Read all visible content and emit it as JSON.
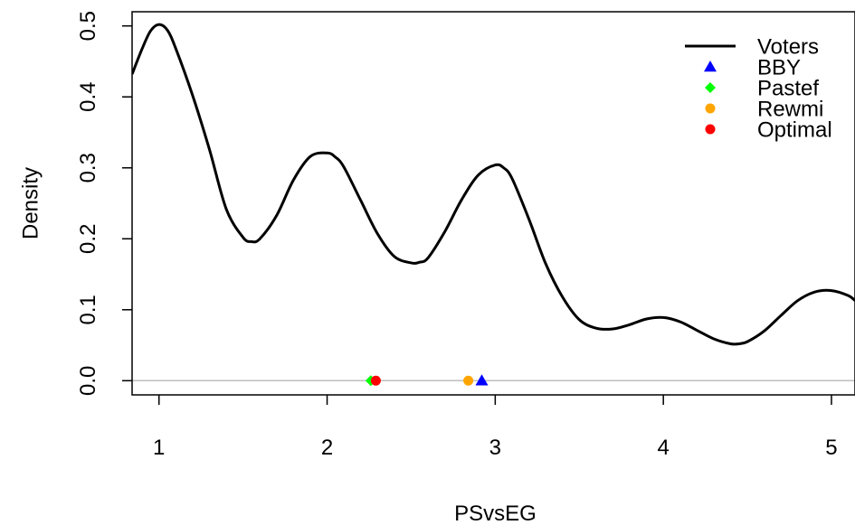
{
  "chart_data": {
    "type": "line",
    "title": "",
    "xlabel": "PSvsEG",
    "ylabel": "Density",
    "xlim": [
      0.84,
      5.14
    ],
    "ylim": [
      -0.02,
      0.52
    ],
    "x_ticks": [
      1,
      2,
      3,
      4,
      5
    ],
    "x_tick_labels": [
      "1",
      "2",
      "3",
      "4",
      "5"
    ],
    "y_ticks": [
      0.0,
      0.1,
      0.2,
      0.3,
      0.4,
      0.5
    ],
    "y_tick_labels": [
      "0.0",
      "0.1",
      "0.2",
      "0.3",
      "0.4",
      "0.5"
    ],
    "grid": false,
    "baseline": {
      "y": 0,
      "color": "#bebebe"
    },
    "legend_position": "top-right",
    "series": [
      {
        "name": "Voters",
        "kind": "line",
        "color": "#000000",
        "x": [
          0.84,
          0.9,
          0.95,
          1.0,
          1.05,
          1.1,
          1.2,
          1.3,
          1.4,
          1.5,
          1.55,
          1.6,
          1.7,
          1.8,
          1.9,
          2.0,
          2.05,
          2.1,
          2.2,
          2.3,
          2.4,
          2.5,
          2.55,
          2.6,
          2.7,
          2.8,
          2.9,
          3.0,
          3.05,
          3.1,
          3.2,
          3.3,
          3.4,
          3.5,
          3.6,
          3.7,
          3.8,
          3.9,
          4.0,
          4.1,
          4.2,
          4.3,
          4.4,
          4.45,
          4.5,
          4.6,
          4.7,
          4.8,
          4.9,
          5.0,
          5.1,
          5.14
        ],
        "y": [
          0.432,
          0.468,
          0.493,
          0.502,
          0.494,
          0.468,
          0.402,
          0.326,
          0.242,
          0.202,
          0.196,
          0.2,
          0.233,
          0.283,
          0.316,
          0.321,
          0.315,
          0.301,
          0.254,
          0.207,
          0.175,
          0.166,
          0.167,
          0.173,
          0.21,
          0.255,
          0.29,
          0.304,
          0.3,
          0.285,
          0.228,
          0.165,
          0.118,
          0.086,
          0.074,
          0.073,
          0.079,
          0.087,
          0.089,
          0.083,
          0.071,
          0.059,
          0.052,
          0.052,
          0.055,
          0.07,
          0.092,
          0.113,
          0.125,
          0.127,
          0.12,
          0.113
        ]
      },
      {
        "name": "BBY",
        "kind": "point",
        "marker": "triangle",
        "color": "#0000ff",
        "x": [
          2.92
        ],
        "y": [
          0
        ]
      },
      {
        "name": "Pastef",
        "kind": "point",
        "marker": "diamond",
        "color": "#00ff00",
        "x": [
          2.26
        ],
        "y": [
          0
        ]
      },
      {
        "name": "Rewmi",
        "kind": "point",
        "marker": "circle",
        "color": "#ffa500",
        "x": [
          2.84
        ],
        "y": [
          0
        ]
      },
      {
        "name": "Optimal",
        "kind": "point",
        "marker": "circle",
        "color": "#ff0000",
        "x": [
          2.29
        ],
        "y": [
          0
        ]
      }
    ]
  }
}
